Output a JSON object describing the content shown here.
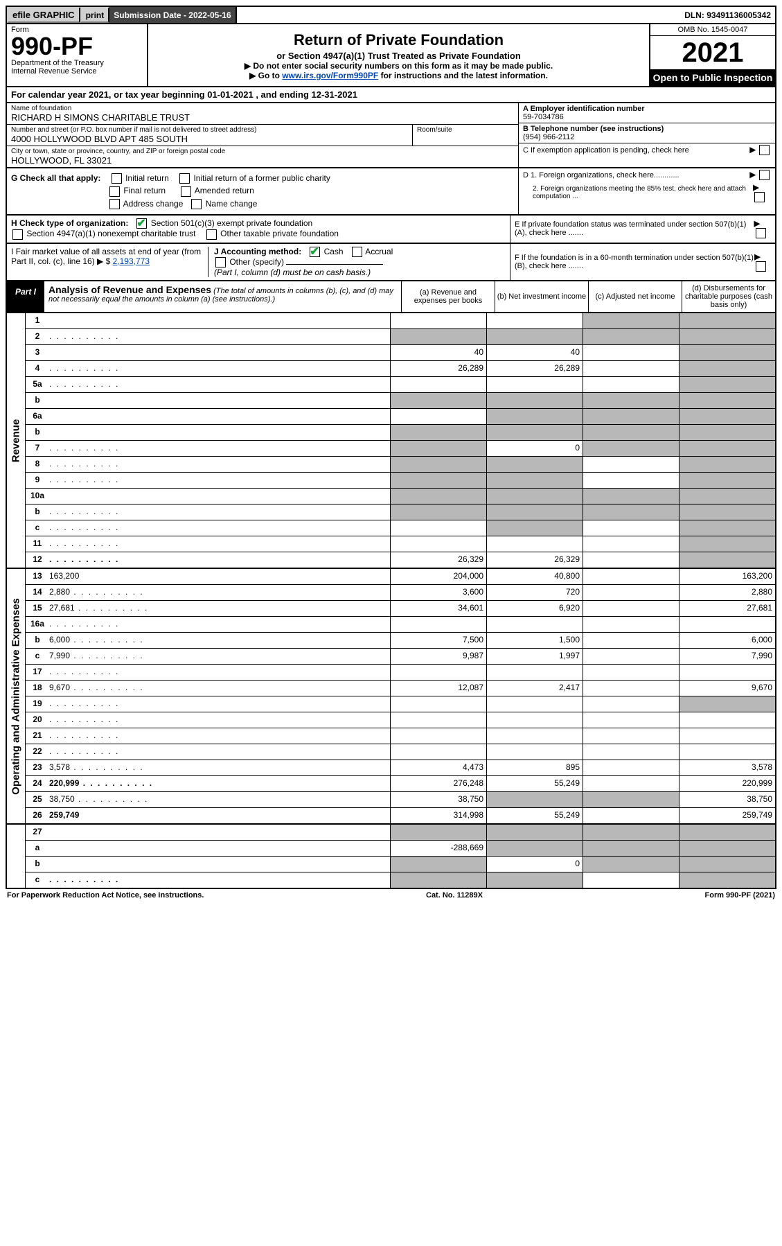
{
  "topbar": {
    "efile": "efile GRAPHIC",
    "print": "print",
    "submission_label": "Submission Date - 2022-05-16",
    "dln": "DLN: 93491136005342"
  },
  "header": {
    "form_label": "Form",
    "form_num": "990-PF",
    "dept": "Department of the Treasury",
    "irs": "Internal Revenue Service",
    "title": "Return of Private Foundation",
    "subtitle": "or Section 4947(a)(1) Trust Treated as Private Foundation",
    "instr1": "▶ Do not enter social security numbers on this form as it may be made public.",
    "instr2_pre": "▶ Go to ",
    "instr2_link": "www.irs.gov/Form990PF",
    "instr2_post": " for instructions and the latest information.",
    "omb": "OMB No. 1545-0047",
    "year": "2021",
    "open": "Open to Public Inspection"
  },
  "calyear": "For calendar year 2021, or tax year beginning 01-01-2021             , and ending 12-31-2021",
  "foundation": {
    "name_label": "Name of foundation",
    "name": "RICHARD H SIMONS CHARITABLE TRUST",
    "addr_label": "Number and street (or P.O. box number if mail is not delivered to street address)",
    "addr": "4000 HOLLYWOOD BLVD APT 485 SOUTH",
    "room_label": "Room/suite",
    "city_label": "City or town, state or province, country, and ZIP or foreign postal code",
    "city": "HOLLYWOOD, FL  33021"
  },
  "right": {
    "a_label": "A Employer identification number",
    "a_val": "59-7034786",
    "b_label": "B Telephone number (see instructions)",
    "b_val": "(954) 966-2112",
    "c_label": "C If exemption application is pending, check here",
    "d1": "D 1. Foreign organizations, check here............",
    "d2": "2. Foreign organizations meeting the 85% test, check here and attach computation ...",
    "e": "E  If private foundation status was terminated under section 507(b)(1)(A), check here .......",
    "f": "F  If the foundation is in a 60-month termination under section 507(b)(1)(B), check here .......",
    "arrow": "▶"
  },
  "g": {
    "label": "G Check all that apply:",
    "initial": "Initial return",
    "initial_former": "Initial return of a former public charity",
    "final": "Final return",
    "amended": "Amended return",
    "addr_change": "Address change",
    "name_change": "Name change"
  },
  "h": {
    "label": "H Check type of organization:",
    "opt1": "Section 501(c)(3) exempt private foundation",
    "opt2": "Section 4947(a)(1) nonexempt charitable trust",
    "opt3": "Other taxable private foundation"
  },
  "i": {
    "label": "I Fair market value of all assets at end of year (from Part II, col. (c), line 16) ▶ $",
    "val": "2,193,773"
  },
  "j": {
    "label": "J Accounting method:",
    "cash": "Cash",
    "accrual": "Accrual",
    "other": "Other (specify)",
    "note": "(Part I, column (d) must be on cash basis.)"
  },
  "part1": {
    "label": "Part I",
    "title": "Analysis of Revenue and Expenses",
    "note": "(The total of amounts in columns (b), (c), and (d) may not necessarily equal the amounts in column (a) (see instructions).)",
    "col_a": "(a)   Revenue and expenses per books",
    "col_b": "(b)   Net investment income",
    "col_c": "(c)   Adjusted net income",
    "col_d": "(d)   Disbursements for charitable purposes (cash basis only)"
  },
  "sides": {
    "revenue": "Revenue",
    "expenses": "Operating and Administrative Expenses"
  },
  "rows": [
    {
      "n": "1",
      "d": "",
      "a": "",
      "b": "",
      "c": "",
      "shade_c": true,
      "shade_d": true
    },
    {
      "n": "2",
      "d": "",
      "a": "",
      "b": "",
      "c": "",
      "shade_a": true,
      "shade_b": true,
      "shade_c": true,
      "shade_d": true,
      "dots": true
    },
    {
      "n": "3",
      "d": "",
      "a": "40",
      "b": "40",
      "c": "",
      "shade_d": true
    },
    {
      "n": "4",
      "d": "",
      "a": "26,289",
      "b": "26,289",
      "c": "",
      "shade_d": true,
      "dots": true
    },
    {
      "n": "5a",
      "d": "",
      "a": "",
      "b": "",
      "c": "",
      "shade_d": true,
      "dots": true
    },
    {
      "n": "b",
      "d": "",
      "a": "",
      "b": "",
      "c": "",
      "shade_a": true,
      "shade_b": true,
      "shade_c": true,
      "shade_d": true
    },
    {
      "n": "6a",
      "d": "",
      "a": "",
      "b": "",
      "c": "",
      "shade_b": true,
      "shade_c": true,
      "shade_d": true
    },
    {
      "n": "b",
      "d": "",
      "a": "",
      "b": "",
      "c": "",
      "shade_a": true,
      "shade_b": true,
      "shade_c": true,
      "shade_d": true
    },
    {
      "n": "7",
      "d": "",
      "a": "",
      "b": "0",
      "c": "",
      "shade_a": true,
      "shade_c": true,
      "shade_d": true,
      "dots": true
    },
    {
      "n": "8",
      "d": "",
      "a": "",
      "b": "",
      "c": "",
      "shade_a": true,
      "shade_b": true,
      "shade_d": true,
      "dots": true
    },
    {
      "n": "9",
      "d": "",
      "a": "",
      "b": "",
      "c": "",
      "shade_a": true,
      "shade_b": true,
      "shade_d": true,
      "dots": true
    },
    {
      "n": "10a",
      "d": "",
      "a": "",
      "b": "",
      "c": "",
      "shade_a": true,
      "shade_b": true,
      "shade_c": true,
      "shade_d": true
    },
    {
      "n": "b",
      "d": "",
      "a": "",
      "b": "",
      "c": "",
      "shade_a": true,
      "shade_b": true,
      "shade_c": true,
      "shade_d": true,
      "dots": true
    },
    {
      "n": "c",
      "d": "",
      "a": "",
      "b": "",
      "c": "",
      "shade_b": true,
      "shade_d": true,
      "dots": true
    },
    {
      "n": "11",
      "d": "",
      "a": "",
      "b": "",
      "c": "",
      "shade_d": true,
      "dots": true
    },
    {
      "n": "12",
      "d": "",
      "a": "26,329",
      "b": "26,329",
      "c": "",
      "bold": true,
      "shade_d": true,
      "dots": true
    }
  ],
  "exp_rows": [
    {
      "n": "13",
      "d": "163,200",
      "a": "204,000",
      "b": "40,800",
      "c": ""
    },
    {
      "n": "14",
      "d": "2,880",
      "a": "3,600",
      "b": "720",
      "c": "",
      "dots": true
    },
    {
      "n": "15",
      "d": "27,681",
      "a": "34,601",
      "b": "6,920",
      "c": "",
      "dots": true
    },
    {
      "n": "16a",
      "d": "",
      "a": "",
      "b": "",
      "c": "",
      "dots": true
    },
    {
      "n": "b",
      "d": "6,000",
      "a": "7,500",
      "b": "1,500",
      "c": "",
      "dots": true
    },
    {
      "n": "c",
      "d": "7,990",
      "a": "9,987",
      "b": "1,997",
      "c": "",
      "dots": true
    },
    {
      "n": "17",
      "d": "",
      "a": "",
      "b": "",
      "c": "",
      "dots": true
    },
    {
      "n": "18",
      "d": "9,670",
      "a": "12,087",
      "b": "2,417",
      "c": "",
      "dots": true
    },
    {
      "n": "19",
      "d": "",
      "a": "",
      "b": "",
      "c": "",
      "shade_d": true,
      "dots": true
    },
    {
      "n": "20",
      "d": "",
      "a": "",
      "b": "",
      "c": "",
      "dots": true
    },
    {
      "n": "21",
      "d": "",
      "a": "",
      "b": "",
      "c": "",
      "dots": true
    },
    {
      "n": "22",
      "d": "",
      "a": "",
      "b": "",
      "c": "",
      "dots": true
    },
    {
      "n": "23",
      "d": "3,578",
      "a": "4,473",
      "b": "895",
      "c": "",
      "dots": true
    },
    {
      "n": "24",
      "d": "220,999",
      "a": "276,248",
      "b": "55,249",
      "c": "",
      "bold": true,
      "dots": true
    },
    {
      "n": "25",
      "d": "38,750",
      "a": "38,750",
      "b": "",
      "c": "",
      "shade_b": true,
      "shade_c": true,
      "dots": true
    },
    {
      "n": "26",
      "d": "259,749",
      "a": "314,998",
      "b": "55,249",
      "c": "",
      "bold": true
    }
  ],
  "bottom_rows": [
    {
      "n": "27",
      "d": "",
      "a": "",
      "b": "",
      "c": "",
      "shade_a": true,
      "shade_b": true,
      "shade_c": true,
      "shade_d": true
    },
    {
      "n": "a",
      "d": "",
      "a": "-288,669",
      "b": "",
      "c": "",
      "bold": true,
      "shade_b": true,
      "shade_c": true,
      "shade_d": true
    },
    {
      "n": "b",
      "d": "",
      "a": "",
      "b": "0",
      "c": "",
      "bold": true,
      "shade_a": true,
      "shade_c": true,
      "shade_d": true
    },
    {
      "n": "c",
      "d": "",
      "a": "",
      "b": "",
      "c": "",
      "bold": true,
      "shade_a": true,
      "shade_b": true,
      "shade_d": true,
      "dots": true
    }
  ],
  "footer": {
    "left": "For Paperwork Reduction Act Notice, see instructions.",
    "mid": "Cat. No. 11289X",
    "right": "Form 990-PF (2021)"
  },
  "colors": {
    "shade": "#b8b8b8",
    "link": "#0046b5",
    "checkgreen": "#13a538"
  }
}
